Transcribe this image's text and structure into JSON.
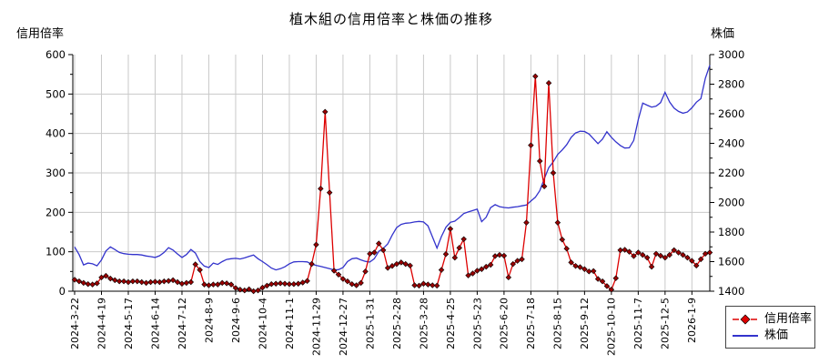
{
  "chart_data": {
    "type": "line",
    "title": "植木組の信用倍率と株価の推移",
    "left_axis": {
      "label": "信用倍率",
      "min": 0,
      "max": 600,
      "tick_step": 100,
      "minor_tick_step": 50,
      "tick_labels": [
        "0",
        "100",
        "200",
        "300",
        "400",
        "500",
        "600"
      ]
    },
    "right_axis": {
      "label": "株価",
      "min": 1400,
      "max": 3000,
      "tick_step": 200,
      "minor_tick_step": 100,
      "tick_labels": [
        "1400",
        "1600",
        "1800",
        "2000",
        "2200",
        "2400",
        "2600",
        "2800",
        "3000"
      ]
    },
    "x_tick_labels": [
      "2024-3-22",
      "2024-4-19",
      "2024-5-17",
      "2024-6-14",
      "2024-7-12",
      "2024-8-9",
      "2024-9-6",
      "2024-10-4",
      "2024-11-1",
      "2024-11-29",
      "2024-12-27",
      "2025-1-31",
      "2025-2-28",
      "2025-3-28",
      "2025-4-25",
      "2025-5-23",
      "2025-6-20",
      "2025-7-18",
      "2025-8-15",
      "2025-9-12",
      "2025-10-10",
      "2025-11-7",
      "2025-12-5",
      "2026-1-9"
    ],
    "points_per_tick": 6,
    "grid": true,
    "legend_position": "bottom-right",
    "grid_color": "#c9c9c9",
    "series": [
      {
        "name": "信用倍率",
        "axis": "left",
        "color": "#dd0000",
        "marker": "diamond",
        "marker_color": "#990000",
        "values": [
          29,
          25,
          21,
          18,
          17,
          20,
          35,
          39,
          32,
          28,
          25,
          25,
          23,
          25,
          25,
          23,
          21,
          23,
          24,
          23,
          25,
          26,
          28,
          23,
          19,
          21,
          23,
          68,
          54,
          17,
          15,
          17,
          17,
          21,
          20,
          17,
          8,
          4,
          2,
          5,
          0,
          2,
          9,
          14,
          18,
          19,
          20,
          19,
          18,
          18,
          19,
          22,
          26,
          69,
          118,
          260,
          455,
          250,
          52,
          42,
          31,
          25,
          18,
          15,
          21,
          50,
          95,
          98,
          121,
          104,
          59,
          64,
          69,
          73,
          69,
          65,
          15,
          14,
          19,
          17,
          15,
          14,
          54,
          94,
          158,
          85,
          110,
          132,
          40,
          45,
          52,
          56,
          62,
          67,
          89,
          92,
          90,
          35,
          69,
          77,
          81,
          174,
          370,
          545,
          330,
          266,
          528,
          300,
          174,
          131,
          108,
          73,
          64,
          61,
          56,
          50,
          51,
          31,
          25,
          13,
          4,
          33,
          104,
          105,
          100,
          89,
          98,
          92,
          85,
          62,
          95,
          90,
          85,
          92,
          104,
          98,
          92,
          85,
          77,
          65,
          81,
          95,
          98
        ]
      },
      {
        "name": "株価",
        "axis": "right",
        "color": "#3333cc",
        "marker": "none",
        "values": [
          1700,
          1648,
          1578,
          1590,
          1585,
          1572,
          1612,
          1672,
          1700,
          1682,
          1662,
          1654,
          1650,
          1648,
          1648,
          1645,
          1638,
          1634,
          1628,
          1640,
          1662,
          1694,
          1678,
          1652,
          1628,
          1648,
          1682,
          1658,
          1600,
          1570,
          1560,
          1590,
          1581,
          1600,
          1615,
          1620,
          1622,
          1618,
          1625,
          1635,
          1645,
          1620,
          1600,
          1579,
          1556,
          1544,
          1552,
          1565,
          1585,
          1598,
          1600,
          1600,
          1598,
          1583,
          1575,
          1568,
          1560,
          1552,
          1544,
          1546,
          1560,
          1600,
          1620,
          1624,
          1612,
          1602,
          1597,
          1620,
          1670,
          1690,
          1720,
          1780,
          1830,
          1852,
          1860,
          1862,
          1868,
          1872,
          1868,
          1842,
          1768,
          1692,
          1770,
          1832,
          1866,
          1874,
          1898,
          1925,
          1936,
          1945,
          1955,
          1870,
          1900,
          1965,
          1985,
          1972,
          1966,
          1963,
          1968,
          1972,
          1977,
          1983,
          2010,
          2035,
          2080,
          2160,
          2235,
          2275,
          2325,
          2355,
          2390,
          2440,
          2470,
          2482,
          2480,
          2463,
          2430,
          2398,
          2428,
          2478,
          2440,
          2410,
          2385,
          2368,
          2370,
          2420,
          2560,
          2672,
          2658,
          2645,
          2652,
          2675,
          2745,
          2680,
          2638,
          2616,
          2604,
          2612,
          2640,
          2678,
          2702,
          2840,
          2928
        ]
      }
    ]
  }
}
